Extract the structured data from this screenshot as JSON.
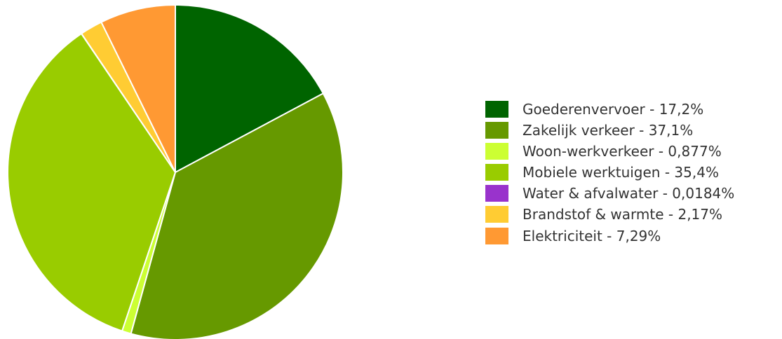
{
  "chart_data": {
    "type": "pie",
    "title": "",
    "legend_position": "right",
    "slices": [
      {
        "label": "Goederenvervoer - 17,2%",
        "value": 17.2,
        "color": "#006400"
      },
      {
        "label": "Zakelijk verkeer - 37,1%",
        "value": 37.1,
        "color": "#669900"
      },
      {
        "label": "Woon-werkverkeer - 0,877%",
        "value": 0.877,
        "color": "#ccff33"
      },
      {
        "label": "Mobiele werktuigen - 35,4%",
        "value": 35.4,
        "color": "#99cc00"
      },
      {
        "label": "Water & afvalwater - 0,0184%",
        "value": 0.0184,
        "color": "#9933cc"
      },
      {
        "label": "Brandstof & warmte - 2,17%",
        "value": 2.17,
        "color": "#ffcc33"
      },
      {
        "label": "Elektriciteit - 7,29%",
        "value": 7.29,
        "color": "#ff9933"
      }
    ]
  }
}
